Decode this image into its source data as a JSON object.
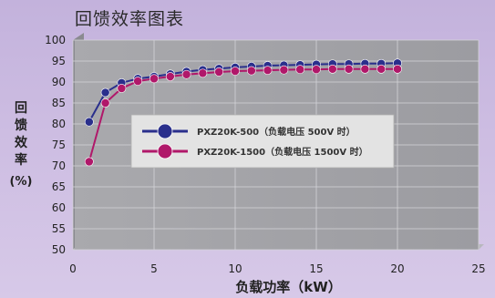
{
  "chart_data": {
    "type": "line",
    "title": "回馈效率图表",
    "ylabel_chars": [
      "回",
      "馈",
      "效",
      "率"
    ],
    "ylabel_unit": "(%)",
    "xlabel": "负载功率（kW）",
    "xlim": [
      0,
      25
    ],
    "ylim": [
      50,
      100
    ],
    "xticks": [
      0,
      5,
      10,
      15,
      20,
      25
    ],
    "yticks": [
      50,
      55,
      60,
      65,
      70,
      75,
      80,
      85,
      90,
      95,
      100
    ],
    "grid": true,
    "legend_position": "center",
    "x": [
      1,
      2,
      3,
      4,
      5,
      6,
      7,
      8,
      9,
      10,
      11,
      12,
      13,
      14,
      15,
      16,
      17,
      18,
      19,
      20
    ],
    "series": [
      {
        "name": "PXZ20K-500（负载电压 500V 时）",
        "color": "#2a2f8c",
        "values": [
          80.5,
          87.5,
          89.8,
          90.8,
          91.3,
          91.9,
          92.5,
          92.9,
          93.2,
          93.5,
          93.7,
          93.9,
          94.0,
          94.1,
          94.2,
          94.3,
          94.3,
          94.4,
          94.4,
          94.5
        ]
      },
      {
        "name": "PXZ20K-1500（负载电压 1500V 时）",
        "color": "#b0186a",
        "values": [
          71.0,
          85.0,
          88.5,
          90.2,
          90.8,
          91.3,
          91.8,
          92.1,
          92.4,
          92.6,
          92.7,
          92.8,
          92.9,
          93.0,
          93.0,
          93.1,
          93.1,
          93.1,
          93.1,
          93.1
        ]
      }
    ]
  }
}
